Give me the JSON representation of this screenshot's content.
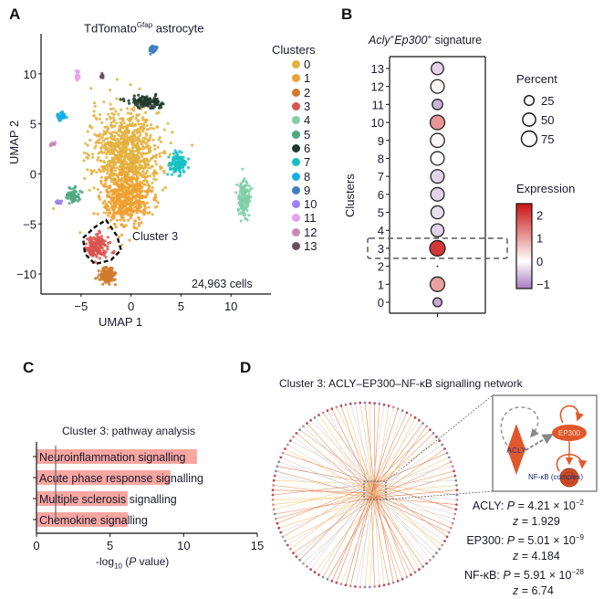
{
  "panels": {
    "A": {
      "label": "A"
    },
    "B": {
      "label": "B"
    },
    "C": {
      "label": "C"
    },
    "D": {
      "label": "D"
    }
  },
  "chart_data": [
    {
      "panel": "A",
      "type": "scatter",
      "title_main": "TdTomato",
      "title_sup": "Gfap",
      "title_rest": " astrocyte",
      "xlabel": "UMAP 1",
      "ylabel": "UMAP 2",
      "xlim": [
        -9,
        14
      ],
      "ylim": [
        -12,
        14
      ],
      "xticks": [
        "−5",
        "0",
        "5",
        "10"
      ],
      "xtick_values": [
        -5,
        0,
        5,
        10
      ],
      "yticks": [
        "10",
        "5",
        "0",
        "−5",
        "−10"
      ],
      "ytick_values": [
        10,
        5,
        0,
        -5,
        -10
      ],
      "annotation": "Cluster 3",
      "cell_count": "24,963 cells",
      "legend_title": "Clusters",
      "legend_position": "right",
      "clusters": [
        {
          "name": "0",
          "color": "#e3b13f",
          "center": [
            -0.5,
            2.0
          ],
          "spread": [
            3.4,
            4.5
          ],
          "n": 900
        },
        {
          "name": "1",
          "color": "#f0a030",
          "center": [
            -0.5,
            -2.5
          ],
          "spread": [
            2.2,
            2.6
          ],
          "n": 450
        },
        {
          "name": "2",
          "color": "#d07a2a",
          "center": [
            -2.4,
            -10.2
          ],
          "spread": [
            0.9,
            0.8
          ],
          "n": 130
        },
        {
          "name": "3",
          "color": "#d9534f",
          "center": [
            -3.3,
            -7.2
          ],
          "spread": [
            1.1,
            1.1
          ],
          "n": 160
        },
        {
          "name": "4",
          "color": "#7ecfa8",
          "center": [
            11.3,
            -2.5
          ],
          "spread": [
            0.6,
            1.8
          ],
          "n": 130
        },
        {
          "name": "5",
          "color": "#4fa882",
          "center": [
            -5.7,
            -2.2
          ],
          "spread": [
            0.7,
            0.7
          ],
          "n": 60
        },
        {
          "name": "6",
          "color": "#1f3a2c",
          "center": [
            1.5,
            7.2
          ],
          "spread": [
            1.6,
            0.6
          ],
          "n": 110
        },
        {
          "name": "7",
          "color": "#15bfc3",
          "center": [
            4.7,
            1.0
          ],
          "spread": [
            0.9,
            1.1
          ],
          "n": 110
        },
        {
          "name": "8",
          "color": "#13aee6",
          "center": [
            -7.0,
            5.7
          ],
          "spread": [
            0.5,
            0.35
          ],
          "n": 40
        },
        {
          "name": "9",
          "color": "#3d7fc0",
          "center": [
            2.2,
            12.5
          ],
          "spread": [
            0.35,
            0.4
          ],
          "n": 30
        },
        {
          "name": "10",
          "color": "#9b82f0",
          "center": [
            -7.3,
            -2.8
          ],
          "spread": [
            0.4,
            0.2
          ],
          "n": 20
        },
        {
          "name": "11",
          "color": "#e3a2ec",
          "center": [
            -5.4,
            9.8
          ],
          "spread": [
            0.2,
            0.6
          ],
          "n": 15
        },
        {
          "name": "12",
          "color": "#c98bb6",
          "center": [
            -7.9,
            3.0
          ],
          "spread": [
            0.3,
            0.2
          ],
          "n": 15
        },
        {
          "name": "13",
          "color": "#6a4e5f",
          "center": [
            -2.9,
            9.7
          ],
          "spread": [
            0.15,
            0.25
          ],
          "n": 10
        }
      ]
    },
    {
      "panel": "B",
      "type": "scatter",
      "title_gene1": "Acly",
      "title_gene2": "Ep300",
      "title_sup": "+",
      "title_rest": " signature",
      "ylabel": "Clusters",
      "categories": [
        "0",
        "1",
        "2",
        "3",
        "4",
        "5",
        "6",
        "7",
        "8",
        "9",
        "10",
        "11",
        "12",
        "13"
      ],
      "percent": [
        20,
        65,
        3,
        75,
        50,
        50,
        55,
        55,
        55,
        60,
        65,
        30,
        55,
        45
      ],
      "expression": [
        -0.8,
        1.0,
        0,
        2.1,
        -0.4,
        -0.3,
        -0.4,
        -0.4,
        0.0,
        0.1,
        1.1,
        -0.7,
        0.1,
        -0.4
      ],
      "highlight_category": "3",
      "size_legend_title": "Percent",
      "size_legend": [
        25,
        50,
        75
      ],
      "color_legend_title": "Expression",
      "color_ticks": [
        "2",
        "1",
        "0",
        "−1"
      ],
      "color_range": [
        -1.2,
        2.5
      ],
      "color_scale": [
        "#a87cc0",
        "#ffffff",
        "#cc1111"
      ]
    },
    {
      "panel": "C",
      "type": "bar",
      "title": "Cluster 3: pathway analysis",
      "categories": [
        "Neuroinflammation signalling",
        "Acute phase response signalling",
        "Multiple sclerosis signalling",
        "Chemokine signalling"
      ],
      "values": [
        10.9,
        9.1,
        6.2,
        6.2
      ],
      "threshold": 1.3,
      "xlabel_prefix": "-log",
      "xlabel_sub": "10",
      "xlabel_suffix_italic": "P",
      "xlabel_suffix": " value)",
      "xlim": [
        0,
        15
      ],
      "xticks": [
        "0",
        "5",
        "10",
        "15"
      ],
      "xtick_values": [
        0,
        5,
        10,
        15
      ],
      "bar_color": "#f7a6a2"
    },
    {
      "panel": "D",
      "type": "network",
      "title": "Cluster 3: ACLY–EP300–NF-κB signalling network",
      "peripheral_nodes": 120,
      "inset_nodes": [
        "ACLY",
        "EP300",
        "NF-κB (complex)"
      ],
      "stats": [
        {
          "gene": "ACLY",
          "p_mant": "4.21",
          "p_exp": "−2",
          "z": "1.929"
        },
        {
          "gene": "EP300",
          "p_mant": "5.01",
          "p_exp": "−9",
          "z": "4.184"
        },
        {
          "gene": "NF-κB",
          "p_mant": "5.91",
          "p_exp": "−28",
          "z": "6.74"
        }
      ],
      "edge_colors": [
        "#e8864a",
        "#d9c9c0",
        "#f0c060",
        "#c8c8d0",
        "#e06030"
      ]
    }
  ]
}
